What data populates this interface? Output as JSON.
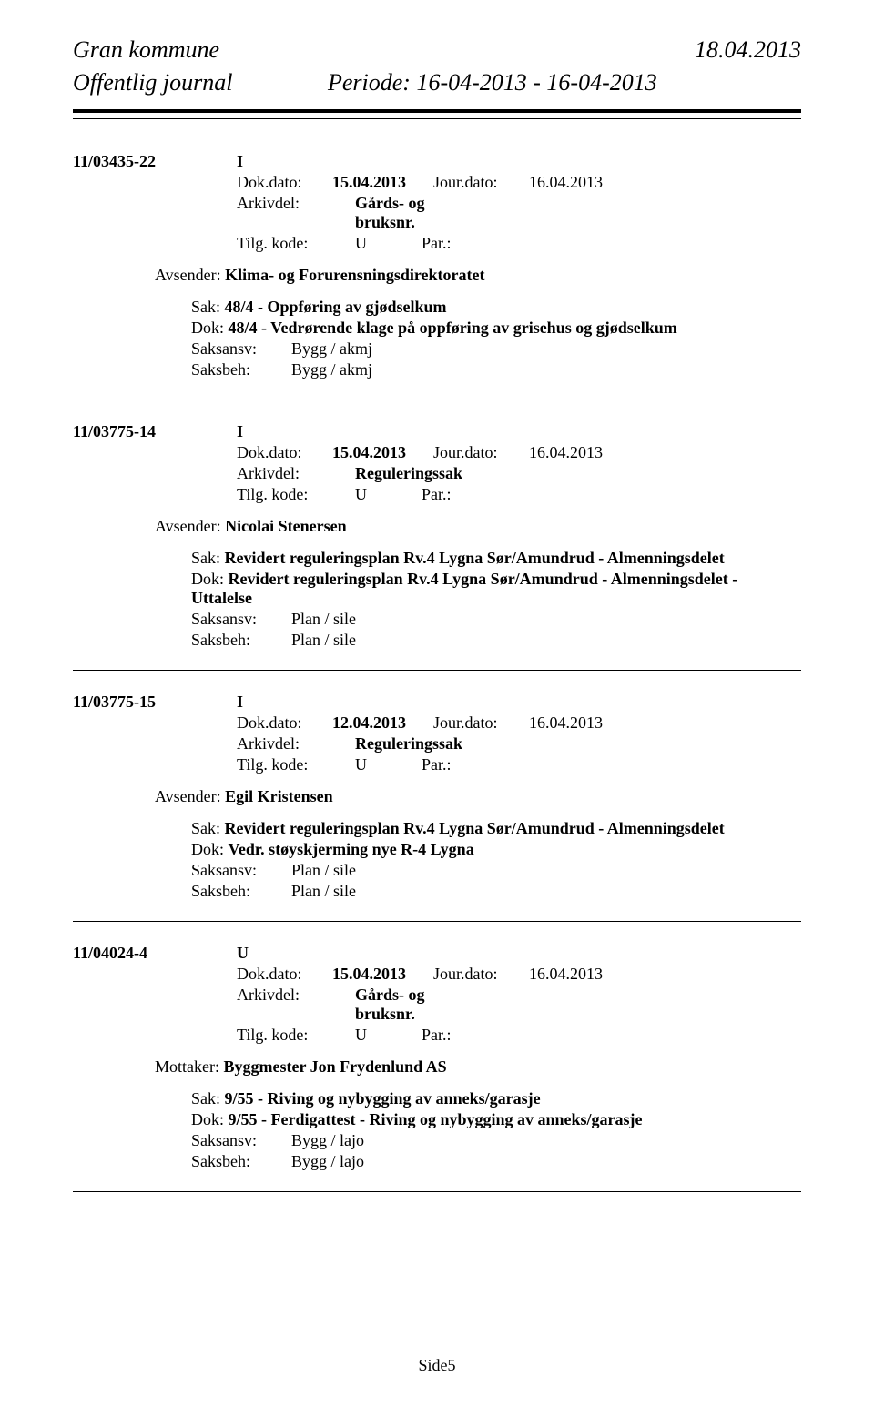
{
  "header": {
    "municipality": "Gran kommune",
    "date": "18.04.2013",
    "journal_label": "Offentlig journal",
    "period": "Periode: 16-04-2013 - 16-04-2013"
  },
  "labels": {
    "dokdato": "Dok.dato:",
    "jourdato": "Jour.dato:",
    "arkivdel": "Arkivdel:",
    "tilgkode": "Tilg. kode:",
    "par": "Par.:",
    "avsender": "Avsender:",
    "mottaker": "Mottaker:",
    "sak": "Sak:",
    "dok": "Dok:",
    "saksansv": "Saksansv:",
    "saksbeh": "Saksbeh:"
  },
  "entries": [
    {
      "case_id": "11/03435-22",
      "io": "I",
      "dokdato": "15.04.2013",
      "jourdato": "16.04.2013",
      "arkivdel": "Gårds- og bruksnr.",
      "arkivdel_line1": "Gårds- og",
      "arkivdel_line2": "bruksnr.",
      "tilgkode": "U",
      "party_label_key": "avsender",
      "party": "Klima- og Forurensningsdirektoratet",
      "sak": "48/4 - Oppføring av gjødselkum",
      "dok": "48/4 - Vedrørende klage på oppføring av grisehus og gjødselkum",
      "saksansv": "Bygg / akmj",
      "saksbeh": "Bygg / akmj"
    },
    {
      "case_id": "11/03775-14",
      "io": "I",
      "dokdato": "15.04.2013",
      "jourdato": "16.04.2013",
      "arkivdel": "Reguleringssak",
      "arkivdel_line1": "Reguleringssak",
      "arkivdel_line2": "",
      "tilgkode": "U",
      "party_label_key": "avsender",
      "party": "Nicolai Stenersen",
      "sak": "Revidert reguleringsplan Rv.4 Lygna Sør/Amundrud - Almenningsdelet",
      "dok": "Revidert reguleringsplan Rv.4 Lygna Sør/Amundrud - Almenningsdelet - Uttalelse",
      "saksansv": "Plan / sile",
      "saksbeh": "Plan / sile"
    },
    {
      "case_id": "11/03775-15",
      "io": "I",
      "dokdato": "12.04.2013",
      "jourdato": "16.04.2013",
      "arkivdel": "Reguleringssak",
      "arkivdel_line1": "Reguleringssak",
      "arkivdel_line2": "",
      "tilgkode": "U",
      "party_label_key": "avsender",
      "party": "Egil   Kristensen",
      "sak": "Revidert reguleringsplan Rv.4 Lygna Sør/Amundrud - Almenningsdelet",
      "dok": "Vedr. støyskjerming nye R-4 Lygna",
      "saksansv": "Plan / sile",
      "saksbeh": "Plan / sile"
    },
    {
      "case_id": "11/04024-4",
      "io": "U",
      "dokdato": "15.04.2013",
      "jourdato": "16.04.2013",
      "arkivdel": "Gårds- og bruksnr.",
      "arkivdel_line1": "Gårds- og",
      "arkivdel_line2": "bruksnr.",
      "tilgkode": "U",
      "party_label_key": "mottaker",
      "party": "Byggmester Jon Frydenlund AS",
      "sak": "9/55 - Riving og nybygging av anneks/garasje",
      "dok": "9/55 - Ferdigattest - Riving og nybygging av anneks/garasje",
      "saksansv": "Bygg / lajo",
      "saksbeh": "Bygg / lajo"
    }
  ],
  "footer": {
    "page": "Side5"
  }
}
